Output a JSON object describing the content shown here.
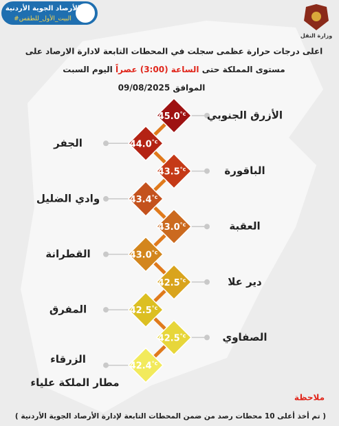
{
  "header": {
    "logo_title": "الأرصاد الجوية الأردنية",
    "logo_tag": "#البيت_الأول_للطقس",
    "emblem_caption": "وزارة النقل"
  },
  "title": {
    "line1": "اعلى درجات حرارة عظمى سجلت في المحطات التابعة لادارة الارصاد على",
    "line2_before": "مستوى المملكة حتى",
    "line2_highlight": "الساعة (3:00) عصراً",
    "line2_after": "اليوم السبت",
    "date": "الموافق 09/08/2025"
  },
  "unit": "°c",
  "stations": [
    {
      "names": [
        "الأزرق الجنوبي"
      ],
      "value": "45.0"
    },
    {
      "names": [
        "الجفر"
      ],
      "value": "44.0"
    },
    {
      "names": [
        "الباقورة"
      ],
      "value": "43.5"
    },
    {
      "names": [
        "وادي الضليل"
      ],
      "value": "43.4"
    },
    {
      "names": [
        "العقبة"
      ],
      "value": "43.0"
    },
    {
      "names": [
        "القطرانة"
      ],
      "value": "43.0"
    },
    {
      "names": [
        "دير علا"
      ],
      "value": "42.5"
    },
    {
      "names": [
        "المفرق"
      ],
      "value": "42.5"
    },
    {
      "names": [
        "الصفاوي"
      ],
      "value": "42.5"
    },
    {
      "names": [
        "الزرقاء",
        "مطار الملكة علياء"
      ],
      "value": "42.4"
    }
  ],
  "note": {
    "title": "ملاحظة",
    "text": "( تم أخذ أعلى 10 محطات رصد من ضمن المحطات التابعة لإدارة الأرصاد الجوية الأردنية )"
  }
}
